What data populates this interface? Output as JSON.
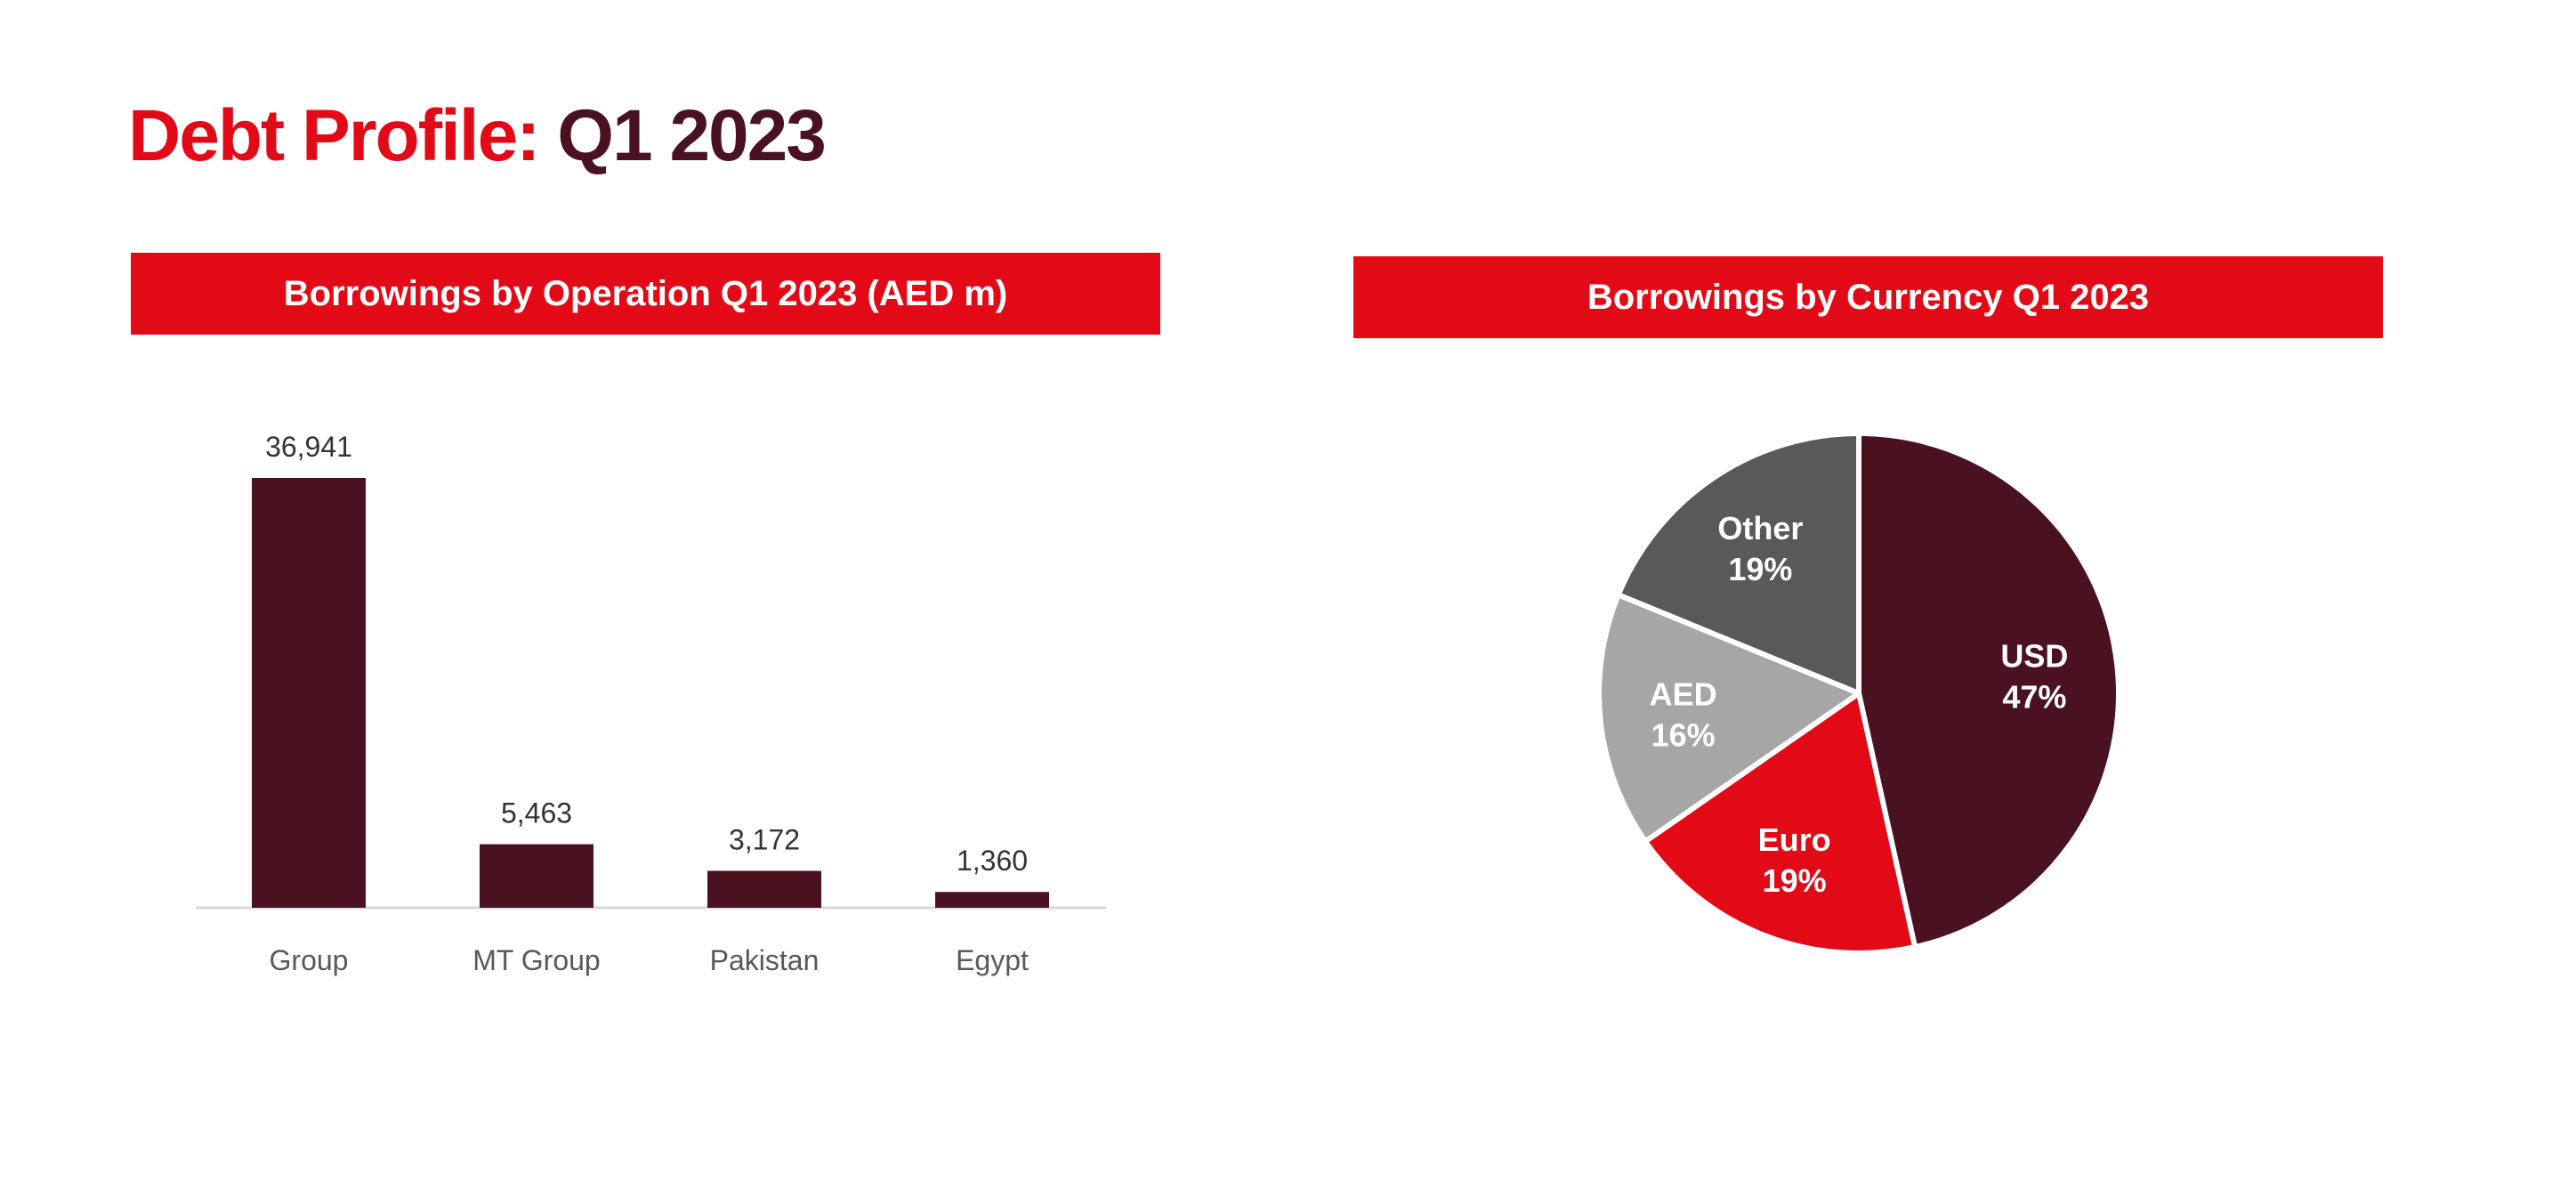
{
  "page": {
    "title_accent": "Debt Profile:",
    "title_rest": "Q1 2023"
  },
  "chart_data": [
    {
      "type": "bar",
      "title": "Borrowings by Operation  Q1 2023 (AED  m)",
      "categories": [
        "Group",
        "MT Group",
        "Pakistan",
        "Egypt"
      ],
      "values": [
        36941,
        5463,
        3172,
        1360
      ],
      "value_labels": [
        "36,941",
        "5,463",
        "3,172",
        "1,360"
      ],
      "ylim": [
        0,
        36941
      ],
      "grid": false,
      "legend": "none",
      "colors": {
        "bar": "#4a1220",
        "axis": "#d9d9d9"
      }
    },
    {
      "type": "pie",
      "title": "Borrowings  by Currency  Q1 2023",
      "slices": [
        {
          "label": "USD",
          "percent_label": "47%",
          "value": 47,
          "color": "#4a1220",
          "text_color": "#ffffff"
        },
        {
          "label": "Euro",
          "percent_label": "19%",
          "value": 19,
          "color": "#e20a16",
          "text_color": "#ffffff"
        },
        {
          "label": "AED",
          "percent_label": "16%",
          "value": 16,
          "color": "#a6a6a6",
          "text_color": "#ffffff"
        },
        {
          "label": "Other",
          "percent_label": "19%",
          "value": 19,
          "color": "#595959",
          "text_color": "#ffffff"
        }
      ],
      "start_direction": "top",
      "clockwise": true,
      "legend": "none"
    }
  ]
}
